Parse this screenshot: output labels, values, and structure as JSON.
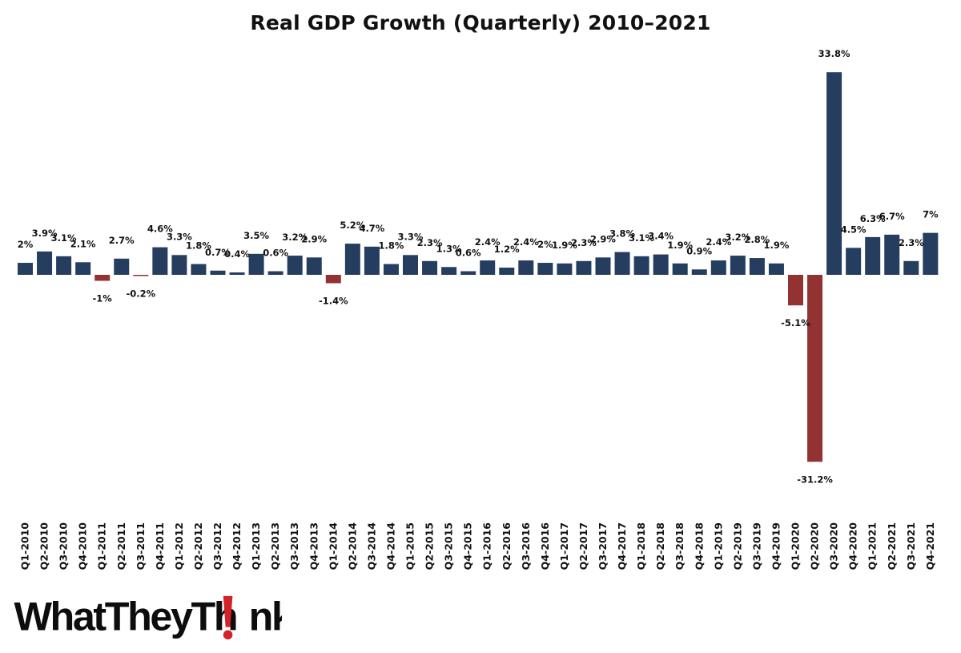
{
  "chart_data": {
    "type": "bar",
    "title": "Real GDP Growth (Quarterly) 2010–2021",
    "xlabel": "",
    "ylabel": "",
    "ylim": [
      -35,
      38
    ],
    "grid": false,
    "legend": "none",
    "positive_color": "#253d5e",
    "negative_color": "#923232",
    "categories": [
      "Q1-2010",
      "Q2-2010",
      "Q3-2010",
      "Q4-2010",
      "Q1-2011",
      "Q2-2011",
      "Q3-2011",
      "Q4-2011",
      "Q1-2012",
      "Q2-2012",
      "Q3-2012",
      "Q4-2012",
      "Q1-2013",
      "Q2-2013",
      "Q3-2013",
      "Q4-2013",
      "Q1-2014",
      "Q2-2014",
      "Q3-2014",
      "Q4-2014",
      "Q1-2015",
      "Q2-2015",
      "Q3-2015",
      "Q4-2015",
      "Q1-2016",
      "Q2-2016",
      "Q3-2016",
      "Q4-2016",
      "Q1-2017",
      "Q2-2017",
      "Q3-2017",
      "Q4-2017",
      "Q1-2018",
      "Q2-2018",
      "Q3-2018",
      "Q4-2018",
      "Q1-2019",
      "Q2-2019",
      "Q3-2019",
      "Q4-2019",
      "Q1-2020",
      "Q2-2020",
      "Q3-2020",
      "Q4-2020",
      "Q1-2021",
      "Q2-2021",
      "Q3-2021",
      "Q4-2021"
    ],
    "values": [
      2,
      3.9,
      3.1,
      2.1,
      -1,
      2.7,
      -0.2,
      4.6,
      3.3,
      1.8,
      0.7,
      0.4,
      3.5,
      0.6,
      3.2,
      2.9,
      -1.4,
      5.2,
      4.7,
      1.8,
      3.3,
      2.3,
      1.3,
      0.6,
      2.4,
      1.2,
      2.4,
      2,
      1.9,
      2.3,
      2.9,
      3.8,
      3.1,
      3.4,
      1.9,
      0.9,
      2.4,
      3.2,
      2.8,
      1.9,
      -5.1,
      -31.2,
      33.8,
      4.5,
      6.3,
      6.7,
      2.3,
      7
    ],
    "data_labels": [
      "2%",
      "3.9%",
      "3.1%",
      "2.1%",
      "-1%",
      "2.7%",
      "-0.2%",
      "4.6%",
      "3.3%",
      "1.8%",
      "0.7%",
      "0.4%",
      "3.5%",
      "0.6%",
      "3.2%",
      "2.9%",
      "-1.4%",
      "5.2%",
      "4.7%",
      "1.8%",
      "3.3%",
      "2.3%",
      "1.3%",
      "0.6%",
      "2.4%",
      "1.2%",
      "2.4%",
      "2%",
      "1.9%",
      "2.3%",
      "2.9%",
      "3.8%",
      "3.1%",
      "3.4%",
      "1.9%",
      "0.9%",
      "2.4%",
      "3.2%",
      "2.8%",
      "1.9%",
      "-5.1%",
      "-31.2%",
      "33.8%",
      "4.5%",
      "6.3%",
      "6.7%",
      "2.3%",
      "7%"
    ]
  },
  "logo": {
    "text_before": "WhatTheyTh",
    "text_after": "nk",
    "accent_color": "#d2232a"
  }
}
